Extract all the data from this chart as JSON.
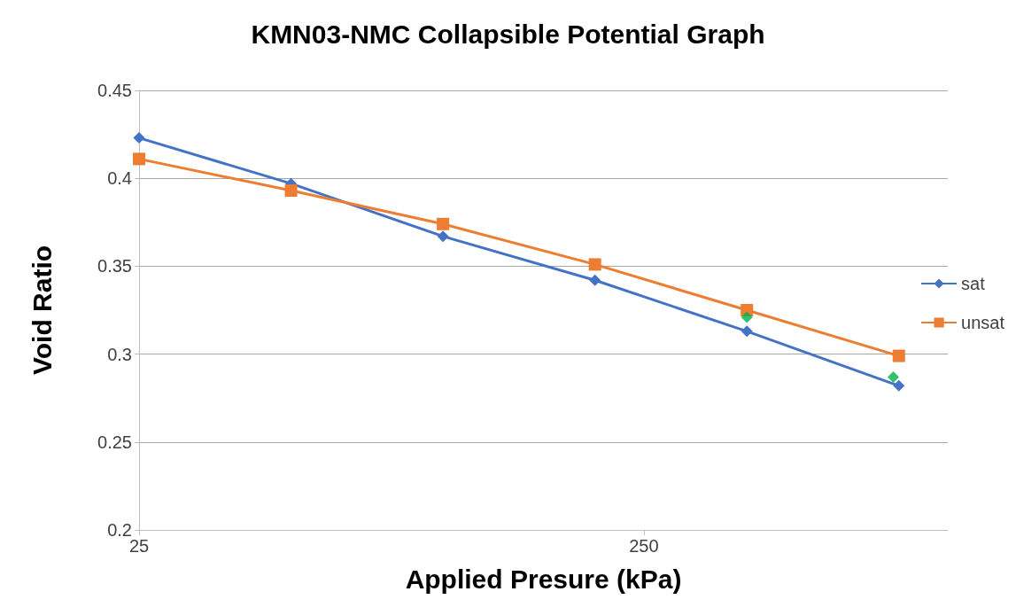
{
  "chart_data": {
    "type": "line",
    "title": "KMN03-NMC Collapsible Potential Graph",
    "xlabel": "Applied Presure (kPa)",
    "ylabel": "Void Ratio",
    "log": "x",
    "xlim": [
      25,
      1000
    ],
    "xticks": [
      25,
      250
    ],
    "ylim": [
      0.2,
      0.45
    ],
    "yticks": [
      0.2,
      0.25,
      0.3,
      0.35,
      0.4,
      0.45
    ],
    "grid": "y",
    "legend": "right",
    "series": [
      {
        "name": "sat",
        "color": "#4472c4",
        "marker": "diamond",
        "x": [
          25,
          50,
          100,
          200,
          400,
          800
        ],
        "values": [
          0.423,
          0.397,
          0.367,
          0.342,
          0.313,
          0.282
        ]
      },
      {
        "name": "unsat",
        "color": "#ed7d31",
        "marker": "square",
        "x": [
          25,
          50,
          100,
          200,
          400,
          800
        ],
        "values": [
          0.411,
          0.393,
          0.374,
          0.351,
          0.325,
          0.299
        ]
      },
      {
        "type": "scatter",
        "color": "#00b050",
        "marker": "diamond",
        "x": [
          400,
          780
        ],
        "values": [
          0.321,
          0.287
        ]
      }
    ]
  }
}
